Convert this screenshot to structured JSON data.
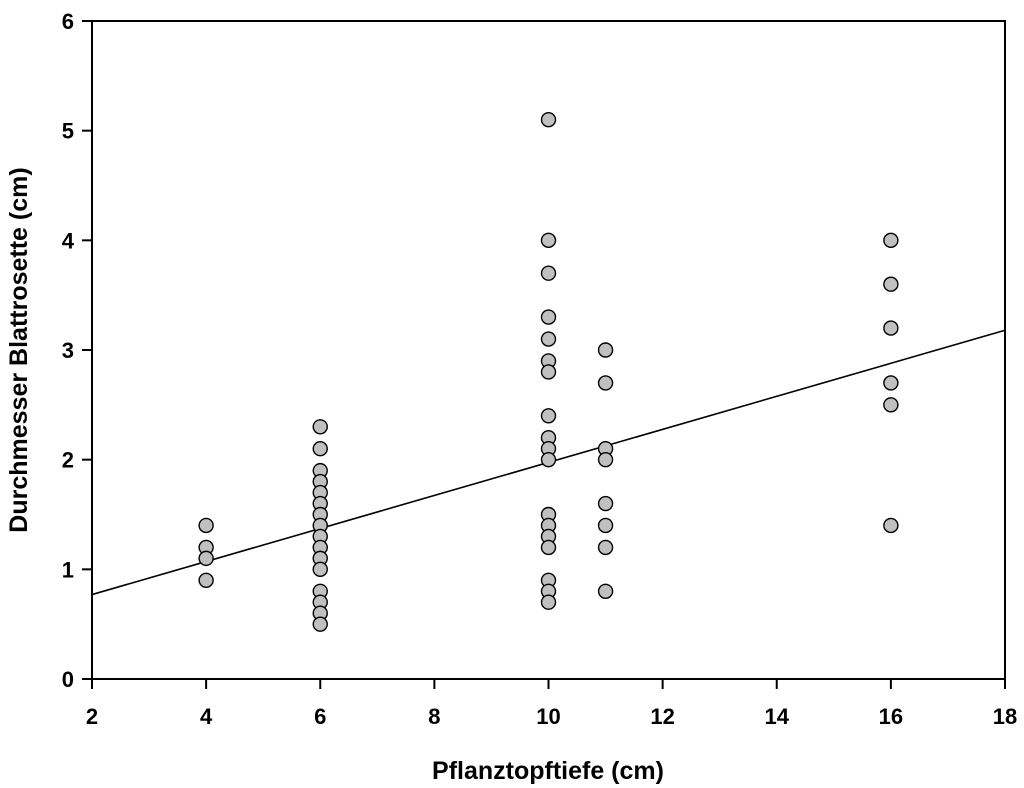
{
  "chart_data": {
    "type": "scatter",
    "title": "",
    "xlabel": "Pflanztopftiefe (cm)",
    "ylabel": "Durchmesser Blattrosette (cm)",
    "xlim": [
      2,
      18
    ],
    "ylim": [
      0,
      6
    ],
    "xticks": [
      "2",
      "4",
      "6",
      "8",
      "10",
      "12",
      "14",
      "16",
      "18"
    ],
    "yticks": [
      "0",
      "1",
      "2",
      "3",
      "4",
      "5",
      "6"
    ],
    "grid": false,
    "legend": "none",
    "marker_fill": "#c0c0c0",
    "marker_edge": "#000000",
    "points": [
      {
        "x": 4,
        "y": 1.4
      },
      {
        "x": 4,
        "y": 1.2
      },
      {
        "x": 4,
        "y": 1.1
      },
      {
        "x": 4,
        "y": 0.9
      },
      {
        "x": 6,
        "y": 2.3
      },
      {
        "x": 6,
        "y": 2.1
      },
      {
        "x": 6,
        "y": 1.9
      },
      {
        "x": 6,
        "y": 1.8
      },
      {
        "x": 6,
        "y": 1.7
      },
      {
        "x": 6,
        "y": 1.6
      },
      {
        "x": 6,
        "y": 1.5
      },
      {
        "x": 6,
        "y": 1.4
      },
      {
        "x": 6,
        "y": 1.3
      },
      {
        "x": 6,
        "y": 1.2
      },
      {
        "x": 6,
        "y": 1.1
      },
      {
        "x": 6,
        "y": 1.0
      },
      {
        "x": 6,
        "y": 0.8
      },
      {
        "x": 6,
        "y": 0.7
      },
      {
        "x": 6,
        "y": 0.6
      },
      {
        "x": 6,
        "y": 0.5
      },
      {
        "x": 10,
        "y": 5.1
      },
      {
        "x": 10,
        "y": 4.0
      },
      {
        "x": 10,
        "y": 3.7
      },
      {
        "x": 10,
        "y": 3.3
      },
      {
        "x": 10,
        "y": 3.1
      },
      {
        "x": 10,
        "y": 2.9
      },
      {
        "x": 10,
        "y": 2.8
      },
      {
        "x": 10,
        "y": 2.4
      },
      {
        "x": 10,
        "y": 2.2
      },
      {
        "x": 10,
        "y": 2.1
      },
      {
        "x": 10,
        "y": 2.0
      },
      {
        "x": 10,
        "y": 1.5
      },
      {
        "x": 10,
        "y": 1.4
      },
      {
        "x": 10,
        "y": 1.3
      },
      {
        "x": 10,
        "y": 1.2
      },
      {
        "x": 10,
        "y": 0.9
      },
      {
        "x": 10,
        "y": 0.8
      },
      {
        "x": 10,
        "y": 0.7
      },
      {
        "x": 11,
        "y": 3.0
      },
      {
        "x": 11,
        "y": 2.7
      },
      {
        "x": 11,
        "y": 2.1
      },
      {
        "x": 11,
        "y": 2.0
      },
      {
        "x": 11,
        "y": 1.6
      },
      {
        "x": 11,
        "y": 1.4
      },
      {
        "x": 11,
        "y": 1.2
      },
      {
        "x": 11,
        "y": 0.8
      },
      {
        "x": 16,
        "y": 4.0
      },
      {
        "x": 16,
        "y": 3.6
      },
      {
        "x": 16,
        "y": 3.2
      },
      {
        "x": 16,
        "y": 2.7
      },
      {
        "x": 16,
        "y": 2.5
      },
      {
        "x": 16,
        "y": 1.4
      }
    ],
    "trendline": {
      "type": "linear",
      "x": [
        2,
        18
      ],
      "y": [
        0.77,
        3.18
      ]
    }
  }
}
